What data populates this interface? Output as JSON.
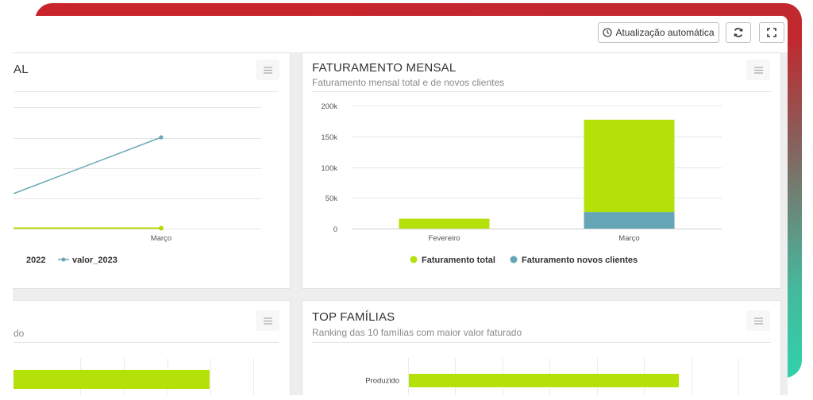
{
  "toolbar": {
    "auto_update_label": "Atualização automática"
  },
  "card_left_top": {
    "title_fragment": "AL",
    "x_category": "Março",
    "legend": [
      {
        "label": "2022",
        "color": "#b5d80a"
      },
      {
        "label": "valor_2023",
        "color": "#6aaab2"
      }
    ]
  },
  "card_faturamento": {
    "title": "FATURAMENTO MENSAL",
    "subtitle": "Faturamento mensal total e de novos clientes",
    "legend": [
      {
        "label": "Faturamento total",
        "color": "#b5e10a"
      },
      {
        "label": "Faturamento novos clientes",
        "color": "#64a6b6"
      }
    ]
  },
  "card_left_bottom": {
    "subtitle_fragment": "do"
  },
  "card_top_familias": {
    "title": "TOP FAMÍLIAS",
    "subtitle": "Ranking das 10 famílias com maior valor faturado"
  },
  "chart_data": [
    {
      "type": "bar",
      "stacked": true,
      "categories": [
        "Fevereiro",
        "Março"
      ],
      "series": [
        {
          "name": "Faturamento total",
          "values": [
            16000,
            150000
          ],
          "color": "#b5e10a"
        },
        {
          "name": "Faturamento novos clientes",
          "values": [
            0,
            27000
          ],
          "color": "#64a6b6"
        }
      ],
      "yticks": [
        "0",
        "50k",
        "100k",
        "150k",
        "200k"
      ],
      "ylim": [
        0,
        200000
      ],
      "grid": true,
      "legend": "bottom"
    },
    {
      "type": "bar",
      "orientation": "horizontal",
      "categories": [
        "Produzido"
      ],
      "values": [
        1
      ],
      "color": "#b5e10a"
    }
  ]
}
